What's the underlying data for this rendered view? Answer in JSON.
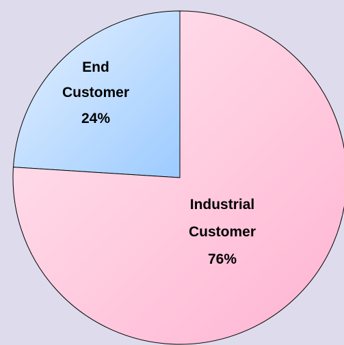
{
  "chart_data": {
    "type": "pie",
    "slices": [
      {
        "name_line1": "End",
        "name_line2": "Customer",
        "value": 24,
        "value_label": "24%",
        "color_light": "#e6f1ff",
        "color_dark": "#9ccbff"
      },
      {
        "name_line1": "Industrial",
        "name_line2": "Customer",
        "value": 76,
        "value_label": "76%",
        "color_light": "#ffe6ef",
        "color_dark": "#ffb3d1"
      }
    ],
    "legend": "none",
    "background": "#dddbec"
  }
}
